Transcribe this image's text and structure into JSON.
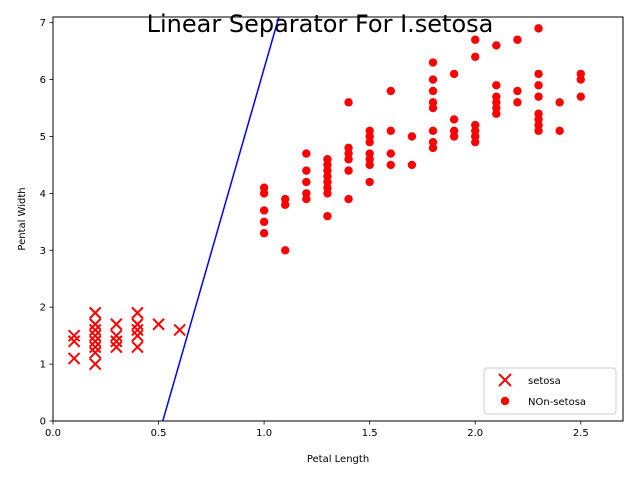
{
  "chart_data": {
    "type": "scatter",
    "title": "Linear Separator For I.setosa",
    "xlabel": "Petal Length",
    "ylabel": "Pental Width",
    "xlim": [
      0,
      2.7
    ],
    "ylim": [
      0,
      7.1
    ],
    "x_ticks": [
      0.0,
      0.5,
      1.0,
      1.5,
      2.0,
      2.5
    ],
    "x_tick_labels": [
      "0.0",
      "0.5",
      "1.0",
      "1.5",
      "2.0",
      "2.5"
    ],
    "y_ticks": [
      0,
      1,
      2,
      3,
      4,
      5,
      6,
      7
    ],
    "y_tick_labels": [
      "0",
      "1",
      "2",
      "3",
      "4",
      "5",
      "6",
      "7"
    ],
    "grid": false,
    "legend_position": "bottom-right",
    "series": [
      {
        "name": "setosa",
        "marker": "x",
        "color": "#ff0000",
        "points": [
          [
            0.1,
            1.4
          ],
          [
            0.1,
            1.5
          ],
          [
            0.1,
            1.1
          ],
          [
            0.2,
            1.9
          ],
          [
            0.2,
            1.7
          ],
          [
            0.2,
            1.6
          ],
          [
            0.2,
            1.5
          ],
          [
            0.2,
            1.4
          ],
          [
            0.2,
            1.3
          ],
          [
            0.2,
            1.2
          ],
          [
            0.2,
            1.0
          ],
          [
            0.3,
            1.7
          ],
          [
            0.3,
            1.5
          ],
          [
            0.3,
            1.4
          ],
          [
            0.3,
            1.3
          ],
          [
            0.4,
            1.9
          ],
          [
            0.4,
            1.7
          ],
          [
            0.4,
            1.6
          ],
          [
            0.4,
            1.5
          ],
          [
            0.4,
            1.3
          ],
          [
            0.5,
            1.7
          ],
          [
            0.6,
            1.6
          ]
        ]
      },
      {
        "name": "NOn-setosa",
        "marker": "o",
        "color": "#ff0000",
        "points": [
          [
            1.0,
            4.1
          ],
          [
            1.0,
            4.0
          ],
          [
            1.0,
            3.7
          ],
          [
            1.0,
            3.5
          ],
          [
            1.0,
            3.3
          ],
          [
            1.1,
            3.9
          ],
          [
            1.1,
            3.8
          ],
          [
            1.1,
            3.0
          ],
          [
            1.2,
            4.7
          ],
          [
            1.2,
            4.4
          ],
          [
            1.2,
            4.2
          ],
          [
            1.2,
            4.0
          ],
          [
            1.2,
            3.9
          ],
          [
            1.3,
            4.6
          ],
          [
            1.3,
            4.5
          ],
          [
            1.3,
            4.4
          ],
          [
            1.3,
            4.3
          ],
          [
            1.3,
            4.2
          ],
          [
            1.3,
            4.1
          ],
          [
            1.3,
            4.0
          ],
          [
            1.3,
            3.6
          ],
          [
            1.4,
            5.6
          ],
          [
            1.4,
            4.8
          ],
          [
            1.4,
            4.7
          ],
          [
            1.4,
            4.6
          ],
          [
            1.4,
            4.4
          ],
          [
            1.4,
            3.9
          ],
          [
            1.5,
            5.1
          ],
          [
            1.5,
            5.0
          ],
          [
            1.5,
            4.9
          ],
          [
            1.5,
            4.7
          ],
          [
            1.5,
            4.6
          ],
          [
            1.5,
            4.5
          ],
          [
            1.5,
            4.2
          ],
          [
            1.6,
            5.8
          ],
          [
            1.6,
            5.1
          ],
          [
            1.6,
            4.7
          ],
          [
            1.6,
            4.5
          ],
          [
            1.7,
            5.0
          ],
          [
            1.7,
            4.5
          ],
          [
            1.8,
            6.3
          ],
          [
            1.8,
            6.0
          ],
          [
            1.8,
            5.8
          ],
          [
            1.8,
            5.6
          ],
          [
            1.8,
            5.5
          ],
          [
            1.8,
            5.1
          ],
          [
            1.8,
            4.9
          ],
          [
            1.8,
            4.8
          ],
          [
            1.9,
            6.1
          ],
          [
            1.9,
            5.3
          ],
          [
            1.9,
            5.1
          ],
          [
            1.9,
            5.0
          ],
          [
            2.0,
            6.7
          ],
          [
            2.0,
            6.4
          ],
          [
            2.0,
            5.2
          ],
          [
            2.0,
            5.1
          ],
          [
            2.0,
            5.0
          ],
          [
            2.0,
            4.9
          ],
          [
            2.1,
            6.6
          ],
          [
            2.1,
            5.9
          ],
          [
            2.1,
            5.7
          ],
          [
            2.1,
            5.6
          ],
          [
            2.1,
            5.5
          ],
          [
            2.1,
            5.4
          ],
          [
            2.2,
            6.7
          ],
          [
            2.2,
            5.8
          ],
          [
            2.2,
            5.6
          ],
          [
            2.3,
            6.9
          ],
          [
            2.3,
            6.1
          ],
          [
            2.3,
            5.9
          ],
          [
            2.3,
            5.7
          ],
          [
            2.3,
            5.4
          ],
          [
            2.3,
            5.3
          ],
          [
            2.3,
            5.2
          ],
          [
            2.3,
            5.1
          ],
          [
            2.4,
            5.6
          ],
          [
            2.4,
            5.1
          ],
          [
            2.5,
            6.1
          ],
          [
            2.5,
            6.0
          ],
          [
            2.5,
            5.7
          ]
        ]
      }
    ],
    "separator_line": {
      "color": "#0000ff",
      "points": [
        [
          0.52,
          0.0
        ],
        [
          1.07,
          7.1
        ]
      ]
    }
  }
}
